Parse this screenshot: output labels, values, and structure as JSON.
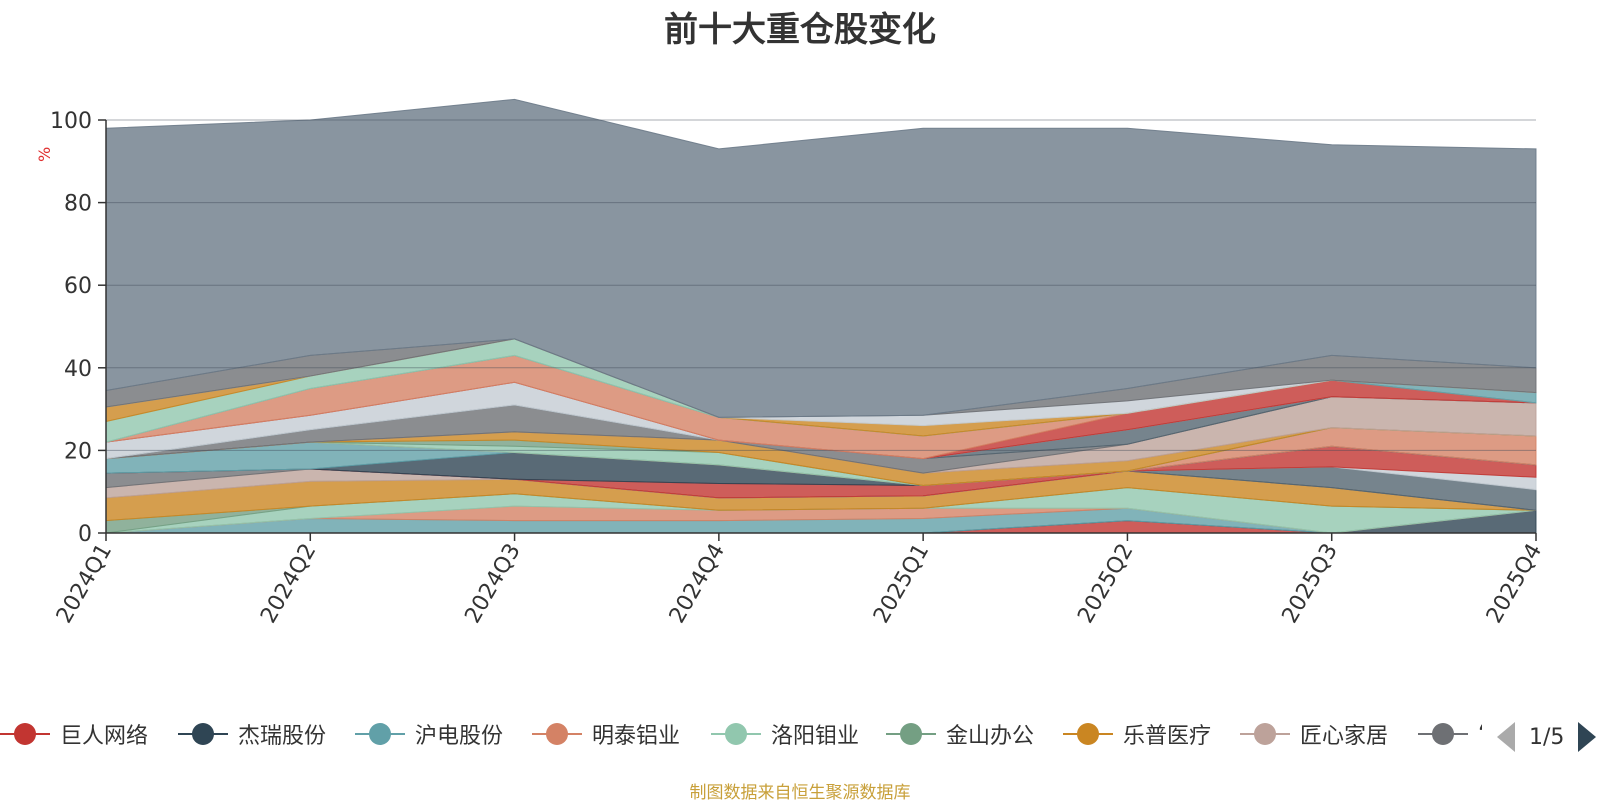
{
  "chart_data": {
    "type": "area",
    "stacked": true,
    "title": "前十大重仓股变化",
    "ylabel": "%",
    "ylim": [
      0,
      100
    ],
    "yticks": [
      0,
      20,
      40,
      60,
      80,
      100
    ],
    "grid": true,
    "categories": [
      "2024Q1",
      "2024Q2",
      "2024Q3",
      "2024Q4",
      "2025Q1",
      "2025Q2",
      "2025Q3",
      "2025Q4"
    ],
    "series": [
      {
        "name": "巨人网络",
        "color": "#c23531",
        "values": [
          0,
          0,
          0,
          0,
          0,
          3,
          0,
          0
        ]
      },
      {
        "name": "杰瑞股份",
        "color": "#2f4554",
        "values": [
          0,
          0,
          0,
          0,
          0,
          0,
          0,
          5.5
        ]
      },
      {
        "name": "沪电股份",
        "color": "#61a0a8",
        "values": [
          0,
          3.5,
          3,
          3,
          3.5,
          3,
          0,
          0
        ]
      },
      {
        "name": "明泰铝业",
        "color": "#d48265",
        "values": [
          0,
          0,
          3.5,
          2.5,
          2.5,
          0,
          0,
          0
        ]
      },
      {
        "name": "洛阳钼业",
        "color": "#91c7ae",
        "values": [
          0,
          3,
          3,
          0,
          0,
          5,
          6.5,
          0
        ]
      },
      {
        "name": "金山办公",
        "color": "#749f83",
        "values": [
          3,
          0,
          0,
          0,
          0,
          0,
          0,
          0
        ]
      },
      {
        "name": "乐普医疗",
        "color": "#ca8622",
        "values": [
          5.5,
          6,
          3.5,
          3,
          3,
          4,
          4.5,
          0
        ]
      },
      {
        "name": "匠心家居",
        "color": "#bda29a",
        "values": [
          2.5,
          3,
          0,
          0,
          0,
          0,
          0,
          0
        ]
      },
      {
        "name": "",
        "color": "#6e7074",
        "values": [
          3.5,
          0,
          0,
          0,
          0,
          0,
          0,
          0
        ]
      },
      {
        "name": "",
        "color": "#546570",
        "values": [
          0,
          0,
          0,
          0,
          0,
          0,
          5,
          5
        ]
      },
      {
        "name": "",
        "color": "#c4ccd3",
        "values": [
          0,
          0,
          0,
          0,
          0,
          0,
          0,
          3
        ]
      },
      {
        "name": "",
        "color": "#c23531",
        "values": [
          0,
          0,
          0,
          3.5,
          2.5,
          0,
          5,
          3
        ]
      },
      {
        "name": "",
        "color": "#2f4554",
        "values": [
          0,
          0,
          6.5,
          4.5,
          0,
          0,
          0,
          0
        ]
      },
      {
        "name": "",
        "color": "#61a0a8",
        "values": [
          3.5,
          6.5,
          0,
          0,
          0,
          0,
          0,
          0
        ]
      },
      {
        "name": "",
        "color": "#d48265",
        "values": [
          0,
          0,
          0,
          0,
          0,
          0,
          4.5,
          7
        ]
      },
      {
        "name": "",
        "color": "#91c7ae",
        "values": [
          0,
          0,
          1.5,
          3,
          0,
          0,
          0,
          0
        ]
      },
      {
        "name": "",
        "color": "#749f83",
        "values": [
          0,
          0,
          1.5,
          0,
          0,
          0,
          0,
          0
        ]
      },
      {
        "name": "",
        "color": "#ca8622",
        "values": [
          0,
          0,
          2,
          3,
          3,
          2.5,
          0,
          0
        ]
      },
      {
        "name": "",
        "color": "#bda29a",
        "values": [
          0,
          0,
          0,
          0,
          0,
          4,
          7.5,
          8
        ]
      },
      {
        "name": "",
        "color": "#6e7074",
        "values": [
          0,
          3,
          6.5,
          0,
          3.5,
          0,
          0,
          0
        ]
      },
      {
        "name": "",
        "color": "#546570",
        "values": [
          0,
          0,
          0,
          0,
          0,
          3.5,
          0,
          0
        ]
      },
      {
        "name": "",
        "color": "#c4ccd3",
        "values": [
          4,
          3.5,
          5.5,
          0,
          0,
          0,
          0,
          0
        ]
      },
      {
        "name": "",
        "color": "#c23531",
        "values": [
          0,
          0,
          0,
          0,
          0,
          4,
          4,
          0
        ]
      },
      {
        "name": "",
        "color": "#d48265",
        "values": [
          0,
          6.5,
          6.5,
          5.5,
          5.5,
          0,
          0,
          0
        ]
      },
      {
        "name": "",
        "color": "#61a0a8",
        "values": [
          0,
          0,
          0,
          0,
          0,
          0,
          0,
          2.5
        ]
      },
      {
        "name": "",
        "color": "#91c7ae",
        "values": [
          5,
          3,
          4,
          0,
          0,
          0,
          0,
          0
        ]
      },
      {
        "name": "",
        "color": "#ca8622",
        "values": [
          3.5,
          0,
          0,
          0,
          2.5,
          0,
          0,
          0
        ]
      },
      {
        "name": "",
        "color": "#c4ccd3",
        "values": [
          0,
          0,
          0,
          0,
          2.5,
          3,
          0,
          0
        ]
      },
      {
        "name": "",
        "color": "#6e7074",
        "values": [
          4,
          5,
          0,
          0,
          0,
          3,
          6,
          6
        ]
      },
      {
        "name": "",
        "color": "#6b7a88",
        "values": [
          63.5,
          57,
          58,
          65,
          69.5,
          63,
          51,
          53
        ]
      }
    ],
    "legend": {
      "placement": "bottom",
      "visible_items": [
        "巨人网络",
        "杰瑞股份",
        "沪电股份",
        "明泰铝业",
        "洛阳钼业",
        "金山办公",
        "乐普医疗",
        "匠心家居",
        "‘"
      ],
      "page": "1/5"
    },
    "source_note": "制图数据来自恒生聚源数据库"
  }
}
